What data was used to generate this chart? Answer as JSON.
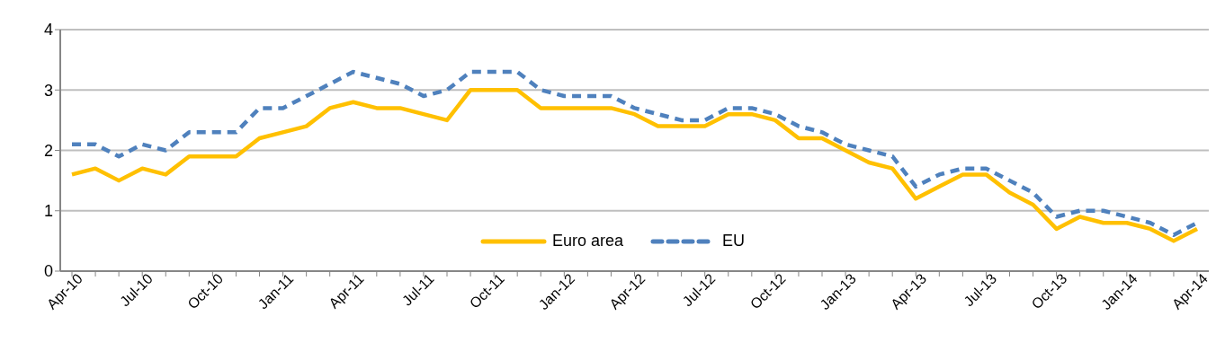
{
  "chart_data": {
    "type": "line",
    "categories": [
      "Apr-10",
      null,
      null,
      "Jul-10",
      null,
      null,
      "Oct-10",
      null,
      null,
      "Jan-11",
      null,
      null,
      "Apr-11",
      null,
      null,
      "Jul-11",
      null,
      null,
      "Oct-11",
      null,
      null,
      "Jan-12",
      null,
      null,
      "Apr-12",
      null,
      null,
      "Jul-12",
      null,
      null,
      "Oct-12",
      null,
      null,
      "Jan-13",
      null,
      null,
      "Apr-13",
      null,
      null,
      "Jul-13",
      null,
      null,
      "Oct-13",
      null,
      null,
      "Jan-14",
      null,
      null,
      "Apr-14"
    ],
    "series": [
      {
        "name": "Euro area",
        "color": "#ffc000",
        "line_style": "solid",
        "values": [
          1.6,
          1.7,
          1.5,
          1.7,
          1.6,
          1.9,
          1.9,
          1.9,
          2.2,
          2.3,
          2.4,
          2.7,
          2.8,
          2.7,
          2.7,
          2.6,
          2.5,
          3.0,
          3.0,
          3.0,
          2.7,
          2.7,
          2.7,
          2.7,
          2.6,
          2.4,
          2.4,
          2.4,
          2.6,
          2.6,
          2.5,
          2.2,
          2.2,
          2.0,
          1.8,
          1.7,
          1.2,
          1.4,
          1.6,
          1.6,
          1.3,
          1.1,
          0.7,
          0.9,
          0.8,
          0.8,
          0.7,
          0.5,
          0.7
        ]
      },
      {
        "name": "EU",
        "color": "#4f81bd",
        "line_style": "dashed",
        "values": [
          2.1,
          2.1,
          1.9,
          2.1,
          2.0,
          2.3,
          2.3,
          2.3,
          2.7,
          2.7,
          2.9,
          3.1,
          3.3,
          3.2,
          3.1,
          2.9,
          3.0,
          3.3,
          3.3,
          3.3,
          3.0,
          2.9,
          2.9,
          2.9,
          2.7,
          2.6,
          2.5,
          2.5,
          2.7,
          2.7,
          2.6,
          2.4,
          2.3,
          2.1,
          2.0,
          1.9,
          1.4,
          1.6,
          1.7,
          1.7,
          1.5,
          1.3,
          0.9,
          1.0,
          1.0,
          0.9,
          0.8,
          0.6,
          0.8
        ]
      }
    ],
    "ylim": [
      0,
      4
    ],
    "yticks": [
      0,
      1,
      2,
      3,
      4
    ],
    "grid": "y",
    "legend": "bottom",
    "marker": "none"
  }
}
